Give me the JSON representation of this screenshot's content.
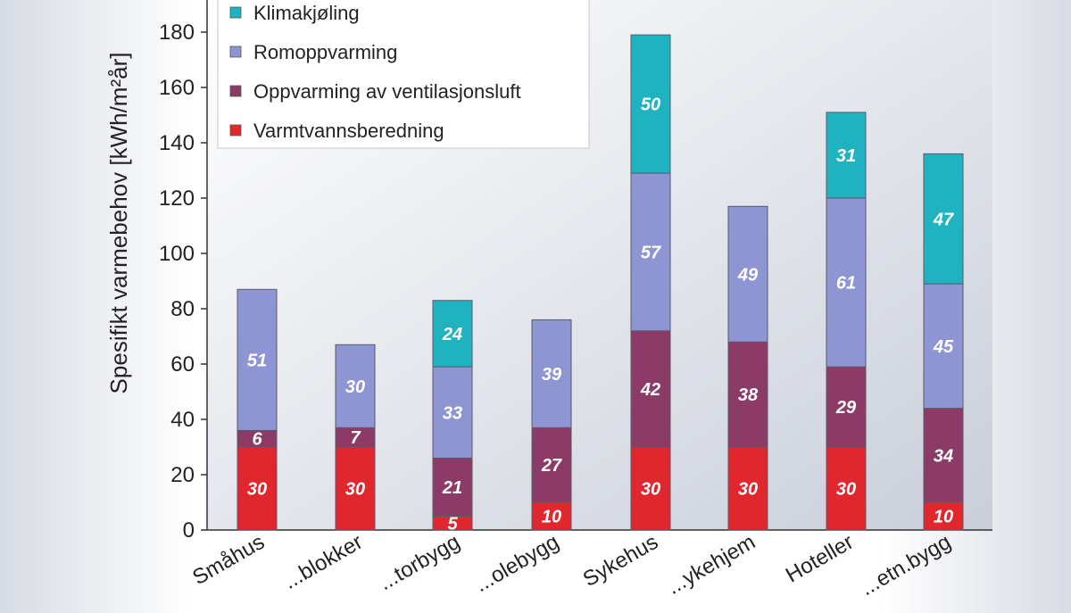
{
  "chart_data": {
    "type": "bar",
    "stacked": true,
    "ylabel": "Spesifikt varmebehov [kWh/m²år]",
    "ylim": [
      0,
      180
    ],
    "yticks": [
      0,
      20,
      40,
      60,
      80,
      100,
      120,
      140,
      160,
      180
    ],
    "categories": [
      "Småhus",
      "...blokker",
      "...torbygg",
      "...olebygg",
      "Sykehus",
      "...ykehjem",
      "Hoteller",
      "...etn.bygg"
    ],
    "series": [
      {
        "name": "Varmtvannsberedning",
        "color": "#e0272d",
        "values": [
          30,
          30,
          5,
          10,
          30,
          30,
          30,
          10
        ]
      },
      {
        "name": "Oppvarming av ventilasjonsluft",
        "color": "#8c3a66",
        "values": [
          6,
          7,
          21,
          27,
          42,
          38,
          29,
          34
        ]
      },
      {
        "name": "Romoppvarming",
        "color": "#8d96d3",
        "values": [
          51,
          30,
          33,
          39,
          57,
          49,
          61,
          45
        ]
      },
      {
        "name": "Klimakjøling",
        "color": "#1fb2c0",
        "values": [
          0,
          0,
          24,
          0,
          50,
          0,
          31,
          47
        ]
      }
    ],
    "legend": {
      "position": "top-left",
      "order": [
        "Klimakjøling",
        "Romoppvarming",
        "Oppvarming av ventilasjonsluft",
        "Varmtvannsberedning"
      ]
    },
    "grid": false
  }
}
